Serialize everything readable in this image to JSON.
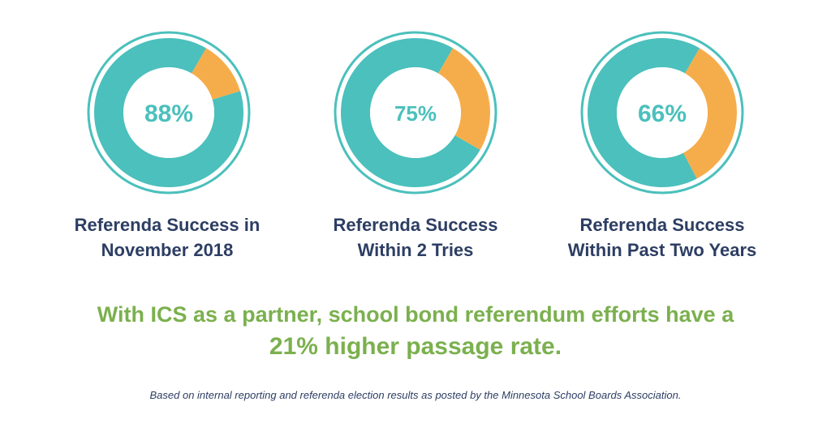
{
  "colors": {
    "teal": "#4bc0bc",
    "orange": "#f5ad4c",
    "navy": "#2d3e63",
    "green": "#7bb04e",
    "label_text": "#4bc0bc"
  },
  "chart_data": [
    {
      "type": "pie",
      "style": "donut",
      "center_label": "88%",
      "slices": [
        {
          "color": "#4bc0bc",
          "value": 88
        },
        {
          "color": "#f5ad4c",
          "value": 12
        }
      ],
      "caption": [
        "Referenda Success in",
        "November 2018"
      ]
    },
    {
      "type": "pie",
      "style": "donut",
      "center_label": "75%",
      "slices": [
        {
          "color": "#4bc0bc",
          "value": 75
        },
        {
          "color": "#f5ad4c",
          "value": 25
        }
      ],
      "caption": [
        "Referenda Success",
        "Within 2 Tries"
      ]
    },
    {
      "type": "pie",
      "style": "donut",
      "center_label": "66%",
      "slices": [
        {
          "color": "#4bc0bc",
          "value": 66
        },
        {
          "color": "#f5ad4c",
          "value": 34
        }
      ],
      "caption": [
        "Referenda Success",
        "Within Past Two Years"
      ]
    }
  ],
  "headline": {
    "line1": "With ICS as a partner, school bond referendum efforts have a",
    "line2": "21% higher passage rate."
  },
  "footnote": "Based on internal reporting and referenda election results as posted by the Minnesota School Boards Association."
}
